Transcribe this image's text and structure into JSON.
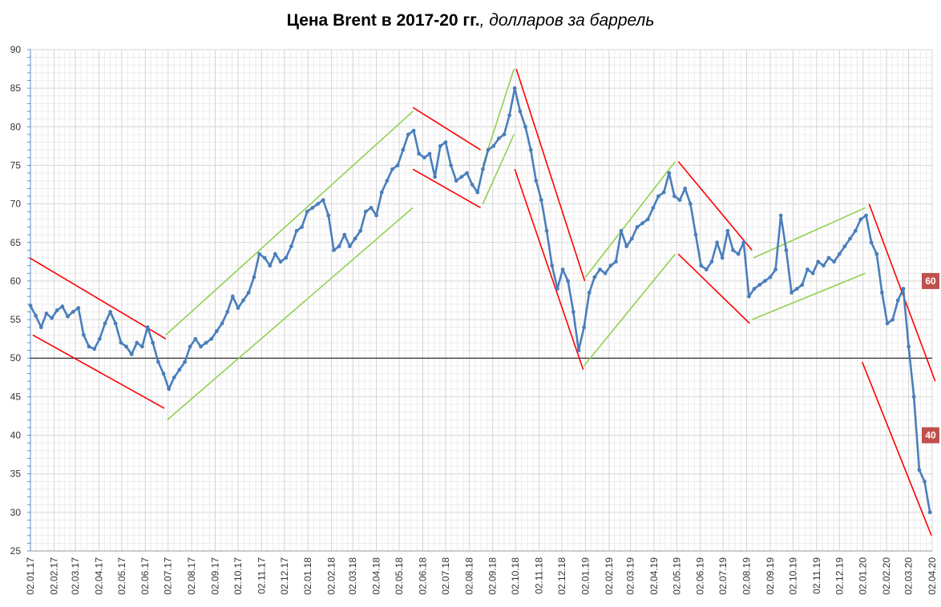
{
  "chart_data": {
    "type": "line",
    "title": "Цена Brent в 2017-20 гг.",
    "subtitle": ", долларов за баррель",
    "xlabel": "",
    "ylabel": "",
    "ylim": [
      25,
      90
    ],
    "grid": true,
    "legend": "none",
    "y_ticks": [
      25,
      30,
      35,
      40,
      45,
      50,
      55,
      60,
      65,
      70,
      75,
      80,
      85,
      90
    ],
    "x_ticks": [
      "02.01.17",
      "02.02.17",
      "02.03.17",
      "02.04.17",
      "02.05.17",
      "02.06.17",
      "02.07.17",
      "02.08.17",
      "02.09.17",
      "02.10.17",
      "02.11.17",
      "02.12.17",
      "02.01.18",
      "02.02.18",
      "02.03.18",
      "02.04.18",
      "02.05.18",
      "02.06.18",
      "02.07.18",
      "02.08.18",
      "02.09.18",
      "02.10.18",
      "02.11.18",
      "02.12.18",
      "02.01.19",
      "02.02.19",
      "02.03.19",
      "02.04.19",
      "02.05.19",
      "02.06.19",
      "02.07.19",
      "02.08.19",
      "02.09.19",
      "02.10.19",
      "02.11.19",
      "02.12.19",
      "02.01.20",
      "02.02.20",
      "02.03.20",
      "02.04.20"
    ],
    "series": [
      {
        "color": "#4a7ebb",
        "points": [
          [
            "2017-01-02",
            56.8
          ],
          [
            "2017-01-09",
            55.5
          ],
          [
            "2017-01-16",
            54.0
          ],
          [
            "2017-01-23",
            55.8
          ],
          [
            "2017-01-30",
            55.2
          ],
          [
            "2017-02-06",
            56.2
          ],
          [
            "2017-02-13",
            56.7
          ],
          [
            "2017-02-20",
            55.4
          ],
          [
            "2017-02-27",
            56.0
          ],
          [
            "2017-03-06",
            56.5
          ],
          [
            "2017-03-13",
            53.0
          ],
          [
            "2017-03-20",
            51.5
          ],
          [
            "2017-03-27",
            51.2
          ],
          [
            "2017-04-03",
            52.5
          ],
          [
            "2017-04-10",
            54.5
          ],
          [
            "2017-04-17",
            56.0
          ],
          [
            "2017-04-24",
            54.5
          ],
          [
            "2017-05-01",
            52.0
          ],
          [
            "2017-05-08",
            51.5
          ],
          [
            "2017-05-15",
            50.5
          ],
          [
            "2017-05-22",
            52.0
          ],
          [
            "2017-05-29",
            51.5
          ],
          [
            "2017-06-05",
            54.0
          ],
          [
            "2017-06-12",
            52.0
          ],
          [
            "2017-06-19",
            49.5
          ],
          [
            "2017-06-26",
            48.0
          ],
          [
            "2017-07-03",
            46.0
          ],
          [
            "2017-07-10",
            47.5
          ],
          [
            "2017-07-17",
            48.5
          ],
          [
            "2017-07-24",
            49.5
          ],
          [
            "2017-07-31",
            51.5
          ],
          [
            "2017-08-07",
            52.5
          ],
          [
            "2017-08-14",
            51.5
          ],
          [
            "2017-08-21",
            52.0
          ],
          [
            "2017-08-28",
            52.5
          ],
          [
            "2017-09-04",
            53.5
          ],
          [
            "2017-09-11",
            54.5
          ],
          [
            "2017-09-18",
            56.0
          ],
          [
            "2017-09-25",
            58.0
          ],
          [
            "2017-10-02",
            56.5
          ],
          [
            "2017-10-09",
            57.5
          ],
          [
            "2017-10-16",
            58.5
          ],
          [
            "2017-10-23",
            60.5
          ],
          [
            "2017-10-30",
            63.5
          ],
          [
            "2017-11-06",
            63.0
          ],
          [
            "2017-11-13",
            62.0
          ],
          [
            "2017-11-20",
            63.5
          ],
          [
            "2017-11-27",
            62.5
          ],
          [
            "2017-12-04",
            63.0
          ],
          [
            "2017-12-11",
            64.5
          ],
          [
            "2017-12-18",
            66.5
          ],
          [
            "2017-12-25",
            67.0
          ],
          [
            "2018-01-01",
            69.0
          ],
          [
            "2018-01-08",
            69.5
          ],
          [
            "2018-01-15",
            70.0
          ],
          [
            "2018-01-22",
            70.5
          ],
          [
            "2018-01-29",
            68.5
          ],
          [
            "2018-02-05",
            64.0
          ],
          [
            "2018-02-12",
            64.5
          ],
          [
            "2018-02-19",
            66.0
          ],
          [
            "2018-02-26",
            64.5
          ],
          [
            "2018-03-05",
            65.5
          ],
          [
            "2018-03-12",
            66.5
          ],
          [
            "2018-03-19",
            69.0
          ],
          [
            "2018-03-26",
            69.5
          ],
          [
            "2018-04-02",
            68.5
          ],
          [
            "2018-04-09",
            71.5
          ],
          [
            "2018-04-16",
            73.0
          ],
          [
            "2018-04-23",
            74.5
          ],
          [
            "2018-04-30",
            75.0
          ],
          [
            "2018-05-07",
            77.0
          ],
          [
            "2018-05-14",
            79.0
          ],
          [
            "2018-05-21",
            79.5
          ],
          [
            "2018-05-28",
            76.5
          ],
          [
            "2018-06-04",
            76.0
          ],
          [
            "2018-06-11",
            76.5
          ],
          [
            "2018-06-18",
            73.5
          ],
          [
            "2018-06-25",
            77.5
          ],
          [
            "2018-07-02",
            78.0
          ],
          [
            "2018-07-09",
            75.0
          ],
          [
            "2018-07-16",
            73.0
          ],
          [
            "2018-07-23",
            73.5
          ],
          [
            "2018-07-30",
            74.0
          ],
          [
            "2018-08-06",
            72.5
          ],
          [
            "2018-08-13",
            71.5
          ],
          [
            "2018-08-20",
            74.5
          ],
          [
            "2018-08-27",
            77.0
          ],
          [
            "2018-09-03",
            77.5
          ],
          [
            "2018-09-10",
            78.5
          ],
          [
            "2018-09-17",
            79.0
          ],
          [
            "2018-09-24",
            81.5
          ],
          [
            "2018-10-01",
            85.0
          ],
          [
            "2018-10-08",
            82.0
          ],
          [
            "2018-10-15",
            80.0
          ],
          [
            "2018-10-22",
            77.0
          ],
          [
            "2018-10-29",
            73.0
          ],
          [
            "2018-11-05",
            70.5
          ],
          [
            "2018-11-12",
            66.5
          ],
          [
            "2018-11-19",
            62.0
          ],
          [
            "2018-11-26",
            59.0
          ],
          [
            "2018-12-03",
            61.5
          ],
          [
            "2018-12-10",
            60.0
          ],
          [
            "2018-12-17",
            56.0
          ],
          [
            "2018-12-24",
            51.0
          ],
          [
            "2018-12-31",
            54.0
          ],
          [
            "2019-01-07",
            58.5
          ],
          [
            "2019-01-14",
            60.5
          ],
          [
            "2019-01-21",
            61.5
          ],
          [
            "2019-01-28",
            61.0
          ],
          [
            "2019-02-04",
            62.0
          ],
          [
            "2019-02-11",
            62.5
          ],
          [
            "2019-02-18",
            66.5
          ],
          [
            "2019-02-25",
            64.5
          ],
          [
            "2019-03-04",
            65.5
          ],
          [
            "2019-03-11",
            67.0
          ],
          [
            "2019-03-18",
            67.5
          ],
          [
            "2019-03-25",
            68.0
          ],
          [
            "2019-04-01",
            69.5
          ],
          [
            "2019-04-08",
            71.0
          ],
          [
            "2019-04-15",
            71.5
          ],
          [
            "2019-04-22",
            74.0
          ],
          [
            "2019-04-29",
            71.0
          ],
          [
            "2019-05-06",
            70.5
          ],
          [
            "2019-05-13",
            72.0
          ],
          [
            "2019-05-20",
            70.0
          ],
          [
            "2019-05-27",
            66.0
          ],
          [
            "2019-06-03",
            62.0
          ],
          [
            "2019-06-10",
            61.5
          ],
          [
            "2019-06-17",
            62.5
          ],
          [
            "2019-06-24",
            65.0
          ],
          [
            "2019-07-01",
            63.0
          ],
          [
            "2019-07-08",
            66.5
          ],
          [
            "2019-07-15",
            64.0
          ],
          [
            "2019-07-22",
            63.5
          ],
          [
            "2019-07-29",
            65.0
          ],
          [
            "2019-08-05",
            58.0
          ],
          [
            "2019-08-12",
            59.0
          ],
          [
            "2019-08-19",
            59.5
          ],
          [
            "2019-08-26",
            60.0
          ],
          [
            "2019-09-02",
            60.5
          ],
          [
            "2019-09-09",
            61.5
          ],
          [
            "2019-09-16",
            68.5
          ],
          [
            "2019-09-23",
            64.0
          ],
          [
            "2019-09-30",
            58.5
          ],
          [
            "2019-10-07",
            59.0
          ],
          [
            "2019-10-14",
            59.5
          ],
          [
            "2019-10-21",
            61.5
          ],
          [
            "2019-10-28",
            61.0
          ],
          [
            "2019-11-04",
            62.5
          ],
          [
            "2019-11-11",
            62.0
          ],
          [
            "2019-11-18",
            63.0
          ],
          [
            "2019-11-25",
            62.5
          ],
          [
            "2019-12-02",
            63.5
          ],
          [
            "2019-12-09",
            64.5
          ],
          [
            "2019-12-16",
            65.5
          ],
          [
            "2019-12-23",
            66.5
          ],
          [
            "2019-12-30",
            68.0
          ],
          [
            "2020-01-06",
            68.5
          ],
          [
            "2020-01-13",
            65.0
          ],
          [
            "2020-01-20",
            63.5
          ],
          [
            "2020-01-27",
            58.5
          ],
          [
            "2020-02-03",
            54.5
          ],
          [
            "2020-02-10",
            55.0
          ],
          [
            "2020-02-17",
            57.5
          ],
          [
            "2020-02-24",
            59.0
          ],
          [
            "2020-03-02",
            51.5
          ],
          [
            "2020-03-09",
            45.0
          ],
          [
            "2020-03-16",
            35.5
          ],
          [
            "2020-03-23",
            34.0
          ],
          [
            "2020-03-30",
            30.0
          ]
        ]
      }
    ],
    "trendlines_green": [
      [
        [
          "2017-06-29",
          53.0
        ],
        [
          "2018-05-20",
          82.0
        ]
      ],
      [
        [
          "2017-07-01",
          42.0
        ],
        [
          "2018-05-20",
          69.5
        ]
      ],
      [
        [
          "2018-08-20",
          75.0
        ],
        [
          "2018-09-30",
          87.5
        ]
      ],
      [
        [
          "2018-08-20",
          70.0
        ],
        [
          "2018-09-30",
          79.0
        ]
      ],
      [
        [
          "2019-01-02",
          60.5
        ],
        [
          "2019-04-30",
          75.5
        ]
      ],
      [
        [
          "2018-12-31",
          49.0
        ],
        [
          "2019-04-30",
          63.5
        ]
      ],
      [
        [
          "2019-08-11",
          63.0
        ],
        [
          "2020-01-05",
          69.5
        ]
      ],
      [
        [
          "2019-08-09",
          55.0
        ],
        [
          "2020-01-05",
          61.0
        ]
      ]
    ],
    "trendlines_red": [
      [
        [
          "2017-01-01",
          63.0
        ],
        [
          "2017-06-29",
          52.5
        ]
      ],
      [
        [
          "2017-01-05",
          53.0
        ],
        [
          "2017-06-27",
          43.5
        ]
      ],
      [
        [
          "2018-05-20",
          82.5
        ],
        [
          "2018-08-17",
          77.0
        ]
      ],
      [
        [
          "2018-05-20",
          74.5
        ],
        [
          "2018-08-17",
          69.5
        ]
      ],
      [
        [
          "2018-10-03",
          87.5
        ],
        [
          "2019-01-01",
          60.0
        ]
      ],
      [
        [
          "2018-10-01",
          74.5
        ],
        [
          "2018-12-30",
          48.5
        ]
      ],
      [
        [
          "2019-05-04",
          75.5
        ],
        [
          "2019-08-09",
          64.0
        ]
      ],
      [
        [
          "2019-05-04",
          63.5
        ],
        [
          "2019-08-06",
          54.5
        ]
      ],
      [
        [
          "2020-01-10",
          70.0
        ],
        [
          "2020-04-06",
          47.0
        ]
      ],
      [
        [
          "2020-01-01",
          49.5
        ],
        [
          "2020-04-01",
          27.0
        ]
      ]
    ],
    "reference_line": 50,
    "badges": [
      {
        "label": "60",
        "value": 60,
        "color": "#c0504d"
      },
      {
        "label": "40",
        "value": 40,
        "color": "#c0504d"
      }
    ]
  }
}
